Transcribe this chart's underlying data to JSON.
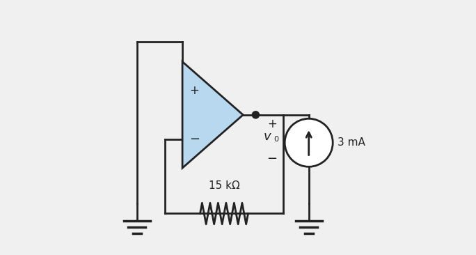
{
  "bg_color": "#f0f0f0",
  "resistor_label": "15 kΩ",
  "current_source_label": "3 mA",
  "vo_label": "v",
  "lw": 2.0,
  "wire_color": "#222222",
  "op_amp_fill": "#b8d8f0",
  "op_amp_edge": "#222222"
}
